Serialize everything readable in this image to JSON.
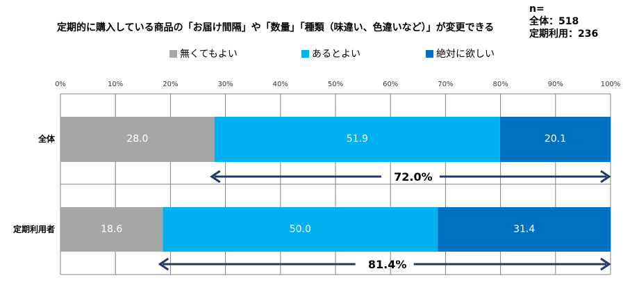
{
  "title": "定期的に購入している商品の「お届け間隔」や「数量」「種類（味違い、色違いなど）」が変更できる",
  "sample": {
    "line1": "n=",
    "line2": "全体：518",
    "line3": "定期利用：236"
  },
  "colors": {
    "gray": "#a6a6a6",
    "light_blue": "#00b0f0",
    "dark_blue": "#0070c0",
    "arrow": "#1f3864",
    "grid": "#808080"
  },
  "chart_data": {
    "type": "bar",
    "orientation": "horizontal",
    "stacked": true,
    "categories": [
      "全体",
      "定期利用者"
    ],
    "series": [
      {
        "name": "無くてもよい",
        "values": [
          28.0,
          18.6
        ],
        "color": "#a6a6a6"
      },
      {
        "name": "あるとよい",
        "values": [
          51.9,
          50.0
        ],
        "color": "#00b0f0"
      },
      {
        "name": "絶対に欲しい",
        "values": [
          20.1,
          31.4
        ],
        "color": "#0070c0"
      }
    ],
    "value_labels": [
      [
        "28.0",
        "51.9",
        "20.1"
      ],
      [
        "18.6",
        "50.0",
        "31.4"
      ]
    ],
    "xlim": [
      0,
      100
    ],
    "x_ticks": [
      "0%",
      "10%",
      "20%",
      "30%",
      "40%",
      "50%",
      "60%",
      "70%",
      "80%",
      "90%",
      "100%"
    ],
    "grid": true,
    "legend_position": "top",
    "annotations": [
      {
        "text": "72.0%",
        "from": 28.0,
        "to": 100
      },
      {
        "text": "81.4%",
        "from": 18.6,
        "to": 100
      }
    ]
  }
}
